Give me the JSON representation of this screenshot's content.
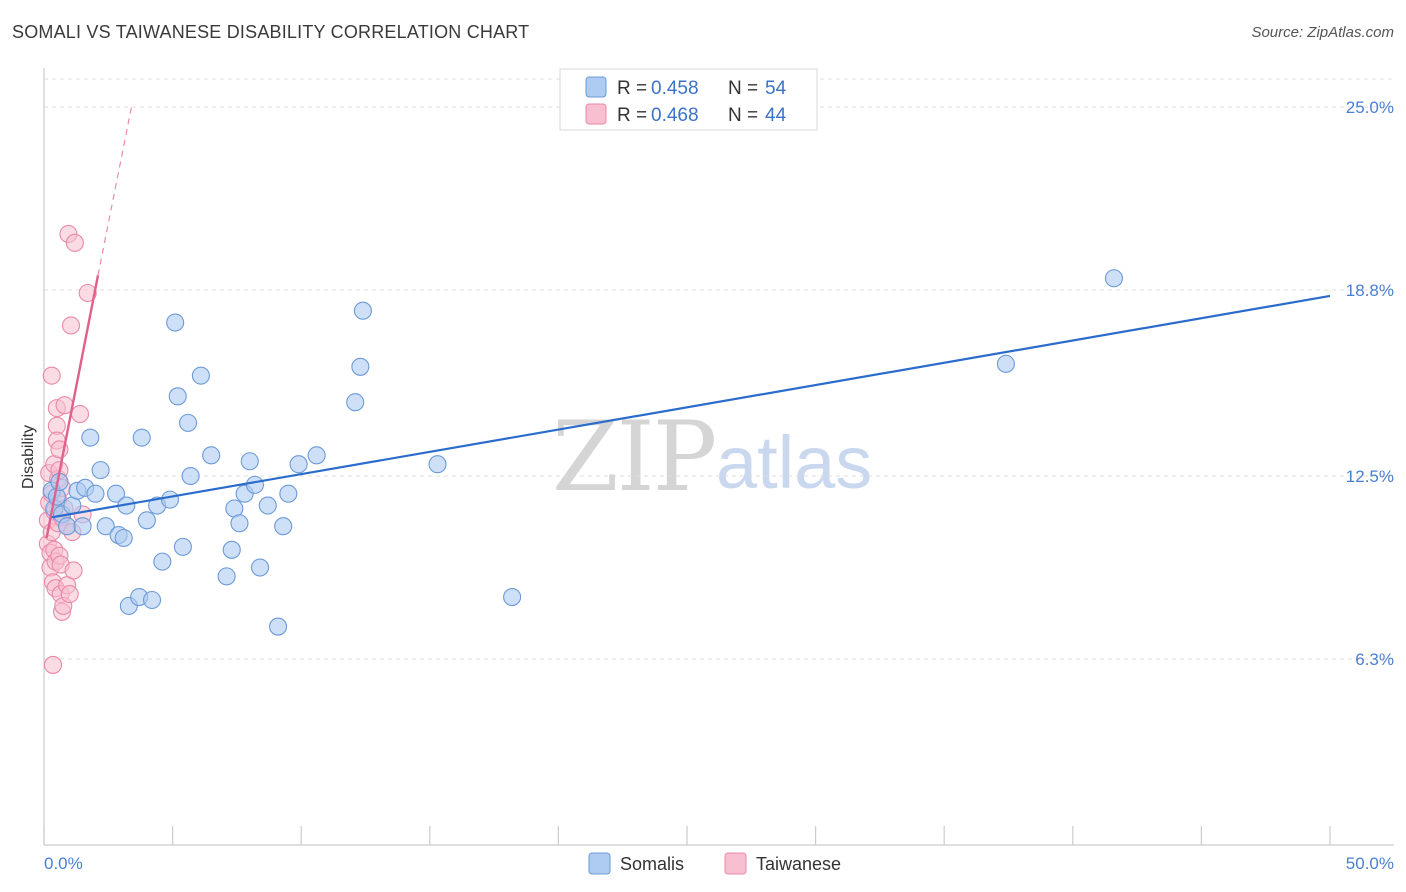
{
  "header": {
    "title": "SOMALI VS TAIWANESE DISABILITY CORRELATION CHART",
    "source": "Source: ZipAtlas.com"
  },
  "watermark": {
    "zip": "ZIP",
    "atlas": "atlas"
  },
  "colors": {
    "blue_fill": "#aecbf2",
    "blue_stroke": "#6c9ad8",
    "blue_line": "#2a6ccc",
    "pink_fill": "#f8bfd0",
    "pink_stroke": "#ea8aa8",
    "pink_line": "#e0608e",
    "grid": "#dcdcdc",
    "tick_text": "#4a7fd0"
  },
  "legend_top": {
    "rows": [
      {
        "r_label": "R = ",
        "r_value": "0.458",
        "n_label": "N = ",
        "n_value": "54"
      },
      {
        "r_label": "R = ",
        "r_value": "0.468",
        "n_label": "N = ",
        "n_value": "44"
      }
    ]
  },
  "chart_data": {
    "type": "scatter",
    "title": "SOMALI VS TAIWANESE DISABILITY CORRELATION CHART",
    "xlabel": "",
    "ylabel": "Disability",
    "xlim": [
      0,
      50
    ],
    "ylim": [
      0,
      27
    ],
    "x_tick_labels": [
      "0.0%",
      "50.0%"
    ],
    "y_ticks": [
      {
        "value": 6.3,
        "label": "6.3%"
      },
      {
        "value": 12.5,
        "label": "12.5%"
      },
      {
        "value": 18.8,
        "label": "18.8%"
      },
      {
        "value": 25.0,
        "label": "25.0%"
      }
    ],
    "grid": true,
    "legend_position": "bottom-center",
    "series": [
      {
        "name": "Somalis",
        "r": 0.458,
        "n": 54,
        "trend": {
          "x": [
            0.3,
            50.0
          ],
          "y": [
            11.1,
            18.6
          ]
        },
        "points": [
          [
            0.3,
            12.0
          ],
          [
            0.4,
            11.4
          ],
          [
            0.5,
            11.8
          ],
          [
            0.6,
            12.3
          ],
          [
            0.7,
            11.2
          ],
          [
            0.9,
            10.8
          ],
          [
            1.1,
            11.5
          ],
          [
            1.3,
            12.0
          ],
          [
            1.5,
            10.8
          ],
          [
            1.6,
            12.1
          ],
          [
            1.8,
            13.8
          ],
          [
            2.0,
            11.9
          ],
          [
            2.2,
            12.7
          ],
          [
            2.4,
            10.8
          ],
          [
            2.8,
            11.9
          ],
          [
            2.9,
            10.5
          ],
          [
            3.2,
            11.5
          ],
          [
            3.1,
            10.4
          ],
          [
            3.3,
            8.1
          ],
          [
            3.7,
            8.4
          ],
          [
            3.8,
            13.8
          ],
          [
            4.0,
            11.0
          ],
          [
            4.2,
            8.3
          ],
          [
            4.4,
            11.5
          ],
          [
            4.6,
            9.6
          ],
          [
            4.9,
            11.7
          ],
          [
            5.1,
            17.7
          ],
          [
            5.2,
            15.2
          ],
          [
            5.4,
            10.1
          ],
          [
            5.6,
            14.3
          ],
          [
            5.7,
            12.5
          ],
          [
            6.1,
            15.9
          ],
          [
            6.5,
            13.2
          ],
          [
            7.1,
            9.1
          ],
          [
            7.3,
            10.0
          ],
          [
            7.4,
            11.4
          ],
          [
            7.6,
            10.9
          ],
          [
            7.8,
            11.9
          ],
          [
            8.0,
            13.0
          ],
          [
            8.2,
            12.2
          ],
          [
            8.4,
            9.4
          ],
          [
            8.7,
            11.5
          ],
          [
            9.1,
            7.4
          ],
          [
            9.3,
            10.8
          ],
          [
            9.5,
            11.9
          ],
          [
            9.9,
            12.9
          ],
          [
            10.6,
            13.2
          ],
          [
            12.1,
            15.0
          ],
          [
            12.3,
            16.2
          ],
          [
            12.4,
            18.1
          ],
          [
            15.3,
            12.9
          ],
          [
            18.2,
            8.4
          ],
          [
            37.4,
            16.3
          ],
          [
            41.6,
            19.2
          ]
        ]
      },
      {
        "name": "Taiwanese",
        "r": 0.468,
        "n": 44,
        "trend": {
          "x": [
            0.1,
            2.1
          ],
          "y": [
            10.4,
            19.3
          ]
        },
        "trend_extension": {
          "x": [
            2.1,
            3.4
          ],
          "y": [
            19.3,
            25.0
          ]
        },
        "points": [
          [
            0.15,
            11.0
          ],
          [
            0.15,
            10.2
          ],
          [
            0.2,
            11.6
          ],
          [
            0.2,
            12.6
          ],
          [
            0.25,
            9.9
          ],
          [
            0.25,
            9.4
          ],
          [
            0.3,
            11.9
          ],
          [
            0.3,
            10.6
          ],
          [
            0.3,
            15.9
          ],
          [
            0.35,
            8.9
          ],
          [
            0.35,
            6.1
          ],
          [
            0.4,
            12.9
          ],
          [
            0.4,
            11.3
          ],
          [
            0.4,
            10.0
          ],
          [
            0.45,
            9.6
          ],
          [
            0.45,
            8.7
          ],
          [
            0.5,
            14.8
          ],
          [
            0.5,
            14.2
          ],
          [
            0.5,
            13.7
          ],
          [
            0.55,
            12.4
          ],
          [
            0.55,
            11.7
          ],
          [
            0.55,
            10.9
          ],
          [
            0.6,
            13.4
          ],
          [
            0.6,
            12.7
          ],
          [
            0.6,
            9.8
          ],
          [
            0.65,
            9.5
          ],
          [
            0.65,
            8.5
          ],
          [
            0.7,
            12.1
          ],
          [
            0.7,
            11.1
          ],
          [
            0.7,
            7.9
          ],
          [
            0.75,
            8.1
          ],
          [
            0.8,
            14.9
          ],
          [
            0.8,
            11.4
          ],
          [
            0.9,
            10.8
          ],
          [
            0.9,
            8.8
          ],
          [
            0.95,
            20.7
          ],
          [
            1.0,
            8.5
          ],
          [
            1.05,
            17.6
          ],
          [
            1.1,
            10.6
          ],
          [
            1.2,
            20.4
          ],
          [
            1.15,
            9.3
          ],
          [
            1.4,
            14.6
          ],
          [
            1.5,
            11.2
          ],
          [
            1.7,
            18.7
          ]
        ]
      }
    ]
  }
}
